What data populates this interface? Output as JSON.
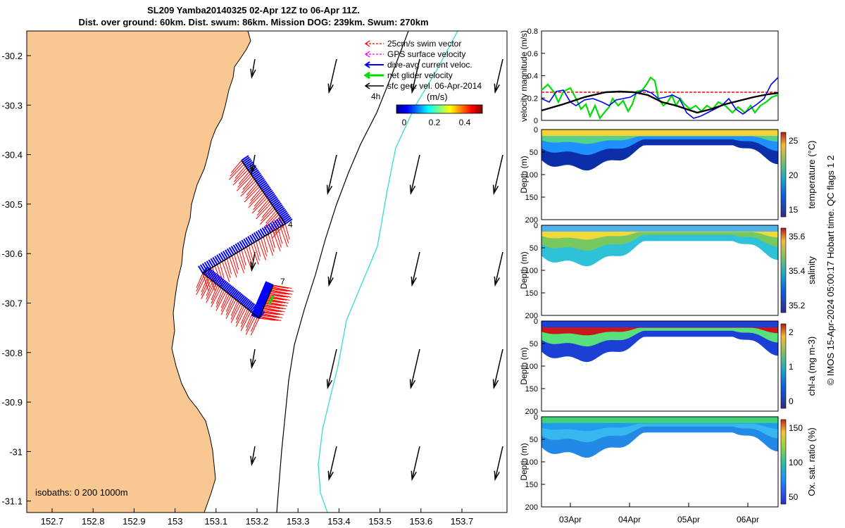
{
  "title": {
    "line1": "SL209 Yamba20140325 02-Apr 12Z to 06-Apr 11Z.",
    "line2": "Dist. over ground: 60km. Dist. swum: 86km. Mission DOG: 239km. Swum: 270km"
  },
  "map": {
    "lon_ticks": [
      "152.7",
      "152.8",
      "152.9",
      "153",
      "153.1",
      "153.2",
      "153.3",
      "153.4",
      "153.5",
      "153.6",
      "153.7"
    ],
    "lat_ticks": [
      "-30.2",
      "-30.3",
      "-30.4",
      "-30.5",
      "-30.6",
      "-30.7",
      "-30.8",
      "-30.9",
      "-31",
      "-31.1"
    ],
    "isobath_note": "isobaths: 0   200  1000m",
    "legend": [
      {
        "label": "25cm/s swim vector",
        "color": "#ff0000"
      },
      {
        "label": "GPS surface velocity",
        "color": "#ff00ff"
      },
      {
        "label": "dive-avg current veloc.",
        "color": "#0000ff"
      },
      {
        "label": "net glider velocity",
        "color": "#00dd00"
      },
      {
        "label": "sfc geo. vel. 06-Apr-2014",
        "color": "#000000"
      }
    ],
    "colorbar": {
      "label": "(m/s)",
      "ticks": [
        "0",
        "0.2",
        "0.4"
      ]
    },
    "markers": {
      "hours": "4h",
      "point_a": "4",
      "point_b": "7"
    },
    "colors": {
      "land": "#f9c892",
      "isobath_200": "#000000",
      "isobath_1000": "#40e0d0",
      "track": "#0000ff",
      "vectors": "#ff0000"
    }
  },
  "velocity_panel": {
    "ylabel": "velocity magnitude (m/s)",
    "yticks": [
      "0",
      "0.2",
      "0.4",
      "0.6",
      "0.8"
    ]
  },
  "sections": [
    {
      "label": "temperature (°C)",
      "ticks": [
        "15",
        "20",
        "25"
      ]
    },
    {
      "label": "salinity",
      "ticks": [
        "35.2",
        "35.4",
        "35.6"
      ]
    },
    {
      "label": "chl-a (mg m-3)",
      "ticks": [
        "0",
        "1",
        "2"
      ]
    },
    {
      "label": "Ox. sat. ratio (%)",
      "ticks": [
        "50",
        "100",
        "150"
      ]
    }
  ],
  "depth_label": "Depth (m)",
  "depth_ticks": [
    "0",
    "50",
    "100",
    "150",
    "200"
  ],
  "date_ticks": [
    "03Apr",
    "04Apr",
    "05Apr",
    "06Apr"
  ],
  "footer": "© IMOS 15-Apr-2024 05:00:17 Hobart time. QC flags 1  2",
  "chart_data": {
    "type": "line",
    "title": "SL209 Yamba20140325 02-Apr 12Z to 06-Apr 11Z.",
    "xlabel": "",
    "ylabel": "velocity magnitude (m/s)",
    "ylim": [
      0,
      0.8
    ],
    "categories": [
      "03Apr",
      "04Apr",
      "05Apr",
      "06Apr"
    ],
    "grid": false,
    "legend_placement": "top-right"
  }
}
